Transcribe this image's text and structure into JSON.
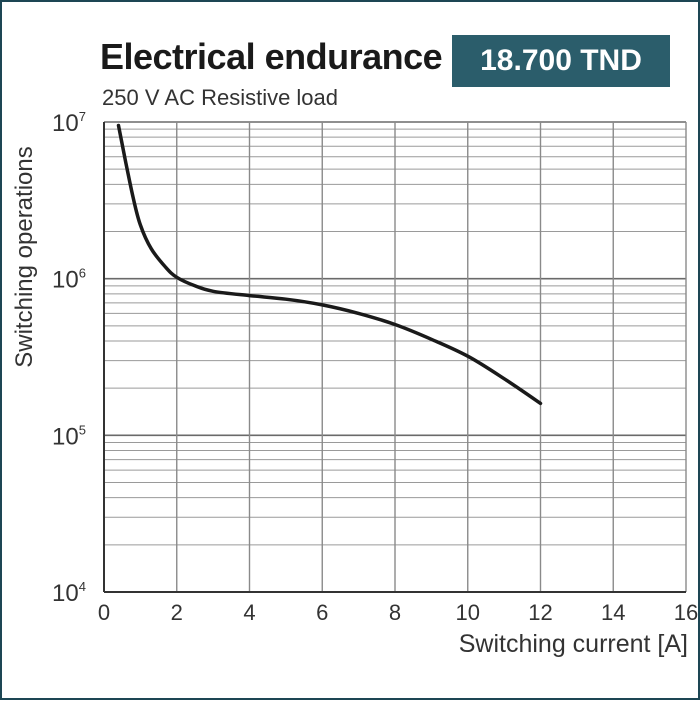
{
  "price_badge": {
    "text": "18.700 TND",
    "background": "#2b5d6b",
    "color": "#ffffff"
  },
  "frame_border_color": "#1d4654",
  "chart_data": {
    "type": "line",
    "title": "Electrical endurance",
    "subtitle": "250 V AC Resistive load",
    "xlabel": "Switching current [A]",
    "ylabel": "Switching operations",
    "xlim": [
      0,
      16
    ],
    "ylim": [
      10000,
      10000000
    ],
    "yscale": "log",
    "grid": true,
    "x_ticks": [
      0,
      2,
      4,
      6,
      8,
      10,
      12,
      14,
      16
    ],
    "y_ticks": [
      {
        "value": 10000,
        "base": "10",
        "exp": "4"
      },
      {
        "value": 100000,
        "base": "10",
        "exp": "5"
      },
      {
        "value": 1000000,
        "base": "10",
        "exp": "6"
      },
      {
        "value": 10000000,
        "base": "10",
        "exp": "7"
      }
    ],
    "series": [
      {
        "color": "#1a1a1a",
        "x": [
          0.4,
          0.6,
          0.8,
          1.0,
          1.3,
          1.7,
          2.0,
          2.5,
          3.0,
          4.0,
          5.0,
          6.0,
          7.0,
          8.0,
          9.0,
          10.0,
          11.0,
          12.0
        ],
        "y": [
          9500000,
          5500000,
          3300000,
          2200000,
          1550000,
          1180000,
          1020000,
          900000,
          830000,
          780000,
          740000,
          680000,
          600000,
          510000,
          410000,
          320000,
          230000,
          160000
        ]
      }
    ]
  }
}
